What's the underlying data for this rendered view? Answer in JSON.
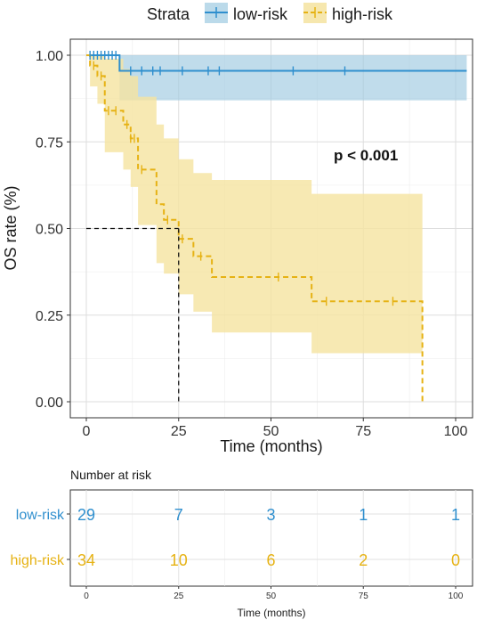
{
  "legend": {
    "title": "Strata",
    "items": [
      {
        "label": "low-risk",
        "color": "#2f8fce"
      },
      {
        "label": "high-risk",
        "color": "#e6b214"
      }
    ]
  },
  "annotation": "p < 0.001",
  "risk_table": {
    "title": "Number at risk",
    "xlabel": "Time (months)",
    "ticks": [
      "0",
      "25",
      "50",
      "75",
      "100"
    ],
    "rows": [
      {
        "label": "low-risk",
        "counts": [
          "29",
          "7",
          "3",
          "1",
          "1"
        ],
        "color": "#2f8fce"
      },
      {
        "label": "high-risk",
        "counts": [
          "34",
          "10",
          "6",
          "2",
          "0"
        ],
        "color": "#e6b214"
      }
    ]
  },
  "chart_data": {
    "type": "line",
    "xlabel": "Time (months)",
    "ylabel": "OS rate (%)",
    "xlim": [
      0,
      103
    ],
    "ylim": [
      0,
      1.03
    ],
    "xticks": [
      "0",
      "25",
      "50",
      "75",
      "100"
    ],
    "yticks": [
      "0.00",
      "0.25",
      "0.50",
      "0.75",
      "1.00"
    ],
    "grid": true,
    "median_line": {
      "x": 25,
      "y": 0.5
    },
    "series": [
      {
        "name": "low-risk",
        "color": "#2f8fce",
        "steps": [
          [
            0,
            1.0
          ],
          [
            9,
            1.0
          ],
          [
            9,
            0.955
          ],
          [
            103,
            0.955
          ]
        ],
        "ci": [
          [
            0,
            1.0,
            1.0
          ],
          [
            9,
            1.0,
            1.0
          ],
          [
            9,
            0.87,
            1.0
          ],
          [
            103,
            0.87,
            1.0
          ]
        ],
        "censor": [
          1,
          2,
          3,
          4,
          5,
          6,
          7,
          8,
          12,
          15,
          18,
          20,
          26,
          33,
          36,
          56,
          70
        ]
      },
      {
        "name": "high-risk",
        "color": "#e6b214",
        "steps": [
          [
            0,
            1.0
          ],
          [
            1,
            0.97
          ],
          [
            3,
            0.94
          ],
          [
            5,
            0.84
          ],
          [
            10,
            0.8
          ],
          [
            12,
            0.76
          ],
          [
            14,
            0.67
          ],
          [
            19,
            0.57
          ],
          [
            21,
            0.525
          ],
          [
            25,
            0.47
          ],
          [
            29,
            0.42
          ],
          [
            34,
            0.36
          ],
          [
            61,
            0.29
          ],
          [
            91,
            0.0
          ]
        ],
        "ci": [
          [
            0,
            1.0,
            1.0
          ],
          [
            1,
            0.91,
            1.0
          ],
          [
            3,
            0.86,
            1.0
          ],
          [
            5,
            0.72,
            0.99
          ],
          [
            10,
            0.67,
            0.96
          ],
          [
            12,
            0.62,
            0.94
          ],
          [
            14,
            0.51,
            0.88
          ],
          [
            19,
            0.4,
            0.8
          ],
          [
            21,
            0.37,
            0.76
          ],
          [
            25,
            0.31,
            0.7
          ],
          [
            29,
            0.26,
            0.66
          ],
          [
            34,
            0.2,
            0.64
          ],
          [
            61,
            0.14,
            0.6
          ],
          [
            91,
            0.0,
            0.6
          ]
        ],
        "censor": [
          2,
          4,
          6,
          8,
          11,
          12,
          13,
          15,
          22,
          26,
          31,
          52,
          65,
          83
        ]
      }
    ]
  }
}
